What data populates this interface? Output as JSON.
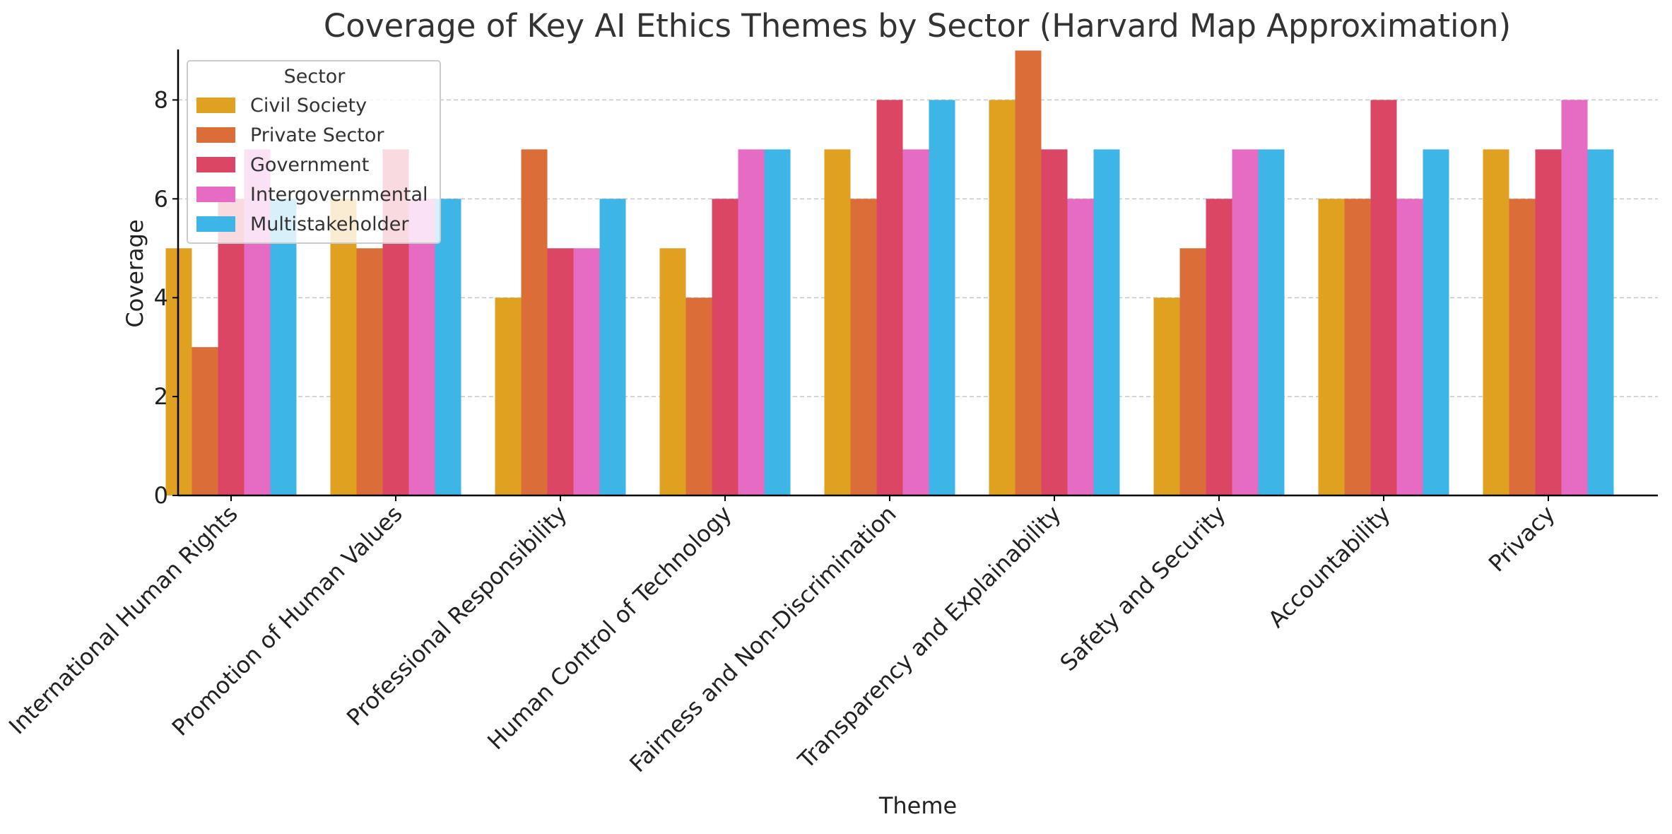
{
  "chart_data": {
    "type": "bar",
    "title": "Coverage of Key AI Ethics Themes by Sector (Harvard Map Approximation)",
    "xlabel": "Theme",
    "ylabel": "Coverage",
    "ylim": [
      0,
      9.45
    ],
    "yticks": [
      "0",
      "2",
      "4",
      "6",
      "8"
    ],
    "grid": "horizontal dashed",
    "legend": {
      "title": "Sector",
      "placement": "top-left"
    },
    "categories": [
      "International Human Rights",
      "Promotion of Human Values",
      "Professional Responsibility",
      "Human Control of Technology",
      "Fairness and Non-Discrimination",
      "Transparency and Explainability",
      "Safety and Security",
      "Accountability",
      "Privacy"
    ],
    "series": [
      {
        "name": "Civil Society",
        "color": "#E0A020",
        "values": [
          5,
          6,
          4,
          5,
          7,
          8,
          4,
          6,
          7
        ]
      },
      {
        "name": "Private Sector",
        "color": "#DB6E38",
        "values": [
          3,
          5,
          7,
          4,
          6,
          9,
          5,
          6,
          6
        ]
      },
      {
        "name": "Government",
        "color": "#DC4665",
        "values": [
          6,
          7,
          5,
          6,
          8,
          7,
          6,
          8,
          7
        ]
      },
      {
        "name": "Intergovernmental",
        "color": "#E56BC3",
        "values": [
          7,
          6,
          5,
          7,
          7,
          6,
          7,
          6,
          8
        ]
      },
      {
        "name": "Multistakeholder",
        "color": "#3DB5E6",
        "values": [
          6,
          6,
          6,
          7,
          8,
          7,
          7,
          7,
          7
        ]
      }
    ]
  }
}
